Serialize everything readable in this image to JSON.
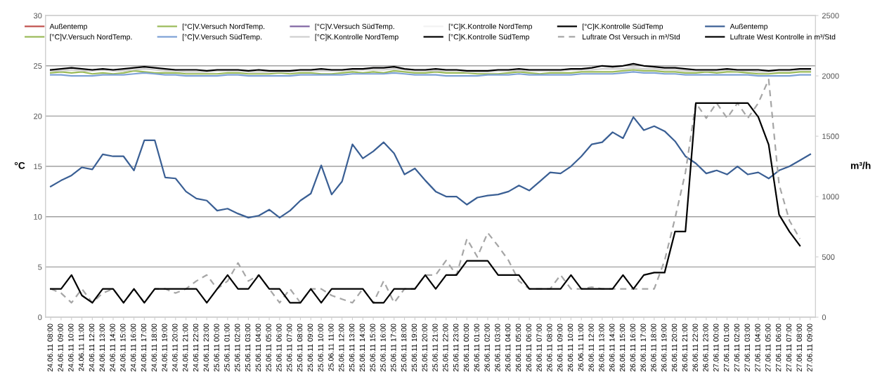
{
  "chart_data": {
    "type": "line",
    "ylabel": "°C",
    "y2label": "m³/h",
    "ylim": [
      0,
      30
    ],
    "yticks": [
      0,
      5,
      10,
      15,
      20,
      25,
      30
    ],
    "y2lim": [
      0,
      2500
    ],
    "y2ticks": [
      0,
      500,
      1000,
      1500,
      2000,
      2500
    ],
    "grid": "y",
    "legend": "top",
    "categories": [
      "24.06.11 08:00",
      "24.06.11 09:00",
      "24.06.11 10:00",
      "24.06.11 11:00",
      "24.06.11 12:00",
      "24.06.11 13:00",
      "24.06.11 14:00",
      "24.06.11 15:00",
      "24.06.11 16:00",
      "24.06.11 17:00",
      "24.06.11 18:00",
      "24.06.11 19:00",
      "24.06.11 20:00",
      "24.06.11 21:00",
      "24.06.11 22:00",
      "24.06.11 23:00",
      "25.06.11 00:00",
      "25.06.11 01:00",
      "25.06.11 02:00",
      "25.06.11 03:00",
      "25.06.11 04:00",
      "25.06.11 05:00",
      "25.06.11 06:00",
      "25.06.11 07:00",
      "25.06.11 08:00",
      "25.06.11 09:00",
      "25.06.11 10:00",
      "25.06.11 11:00",
      "25.06.11 12:00",
      "25.06.11 13:00",
      "25.06.11 14:00",
      "25.06.11 15:00",
      "25.06.11 16:00",
      "25.06.11 17:00",
      "25.06.11 18:00",
      "25.06.11 19:00",
      "25.06.11 20:00",
      "25.06.11 21:00",
      "25.06.11 22:00",
      "25.06.11 23:00",
      "26.06.11 00:00",
      "26.06.11 01:00",
      "26.06.11 02:00",
      "26.06.11 03:00",
      "26.06.11 04:00",
      "26.06.11 05:00",
      "26.06.11 06:00",
      "26.06.11 07:00",
      "26.06.11 08:00",
      "26.06.11 09:00",
      "26.06.11 10:00",
      "26.06.11 11:00",
      "26.06.11 12:00",
      "26.06.11 13:00",
      "26.06.11 14:00",
      "26.06.11 15:00",
      "26.06.11 16:00",
      "26.06.11 17:00",
      "26.06.11 18:00",
      "26.06.11 19:00",
      "26.06.11 20:00",
      "26.06.11 21:00",
      "26.06.11 22:00",
      "26.06.11 23:00",
      "27.06.11 00:00",
      "27.06.11 01:00",
      "27.06.11 02:00",
      "27.06.11 03:00",
      "27.06.11 04:00",
      "27.06.11 05:00",
      "27.06.11 06:00",
      "27.06.11 07:00",
      "27.06.11 08:00",
      "27.06.11 09:00"
    ],
    "series": [
      {
        "name": "Außentemp",
        "color": "#c0504d",
        "values": [
          null,
          null,
          null,
          null,
          null,
          null,
          null,
          null,
          null,
          null,
          null,
          null,
          null,
          null,
          null,
          null,
          null,
          null,
          null,
          null,
          null,
          null,
          null,
          null,
          null,
          null,
          null,
          null,
          null,
          null,
          null,
          null,
          null,
          null,
          null,
          null,
          null,
          null,
          null,
          null,
          null,
          null,
          null,
          null,
          null,
          null,
          null,
          null,
          null,
          null,
          null,
          null,
          null,
          null,
          null,
          null,
          null,
          null,
          null,
          null,
          null,
          null,
          null,
          null,
          null,
          null,
          null,
          null,
          null,
          null,
          null,
          null,
          null,
          null
        ]
      },
      {
        "name": "[°C]V.Versuch NordTemp.",
        "color": "#9bbb59",
        "values": [
          null,
          null,
          null,
          null,
          null,
          null,
          null,
          null,
          null,
          null,
          null,
          null,
          null,
          null,
          null,
          null,
          null,
          null,
          null,
          null,
          null,
          null,
          null,
          null,
          null,
          null,
          null,
          null,
          null,
          null,
          null,
          null,
          null,
          null,
          null,
          null,
          null,
          null,
          null,
          null,
          null,
          null,
          null,
          null,
          null,
          null,
          null,
          null,
          null,
          null,
          null,
          null,
          null,
          null,
          null,
          null,
          null,
          null,
          null,
          null,
          null,
          null,
          null,
          null,
          null,
          null,
          null,
          null,
          null,
          null,
          null,
          null,
          null,
          null
        ]
      },
      {
        "name": "[°C]V.Versuch SüdTemp.",
        "color": "#8064a2",
        "values": [
          null,
          null,
          null,
          null,
          null,
          null,
          null,
          null,
          null,
          null,
          null,
          null,
          null,
          null,
          null,
          null,
          null,
          null,
          null,
          null,
          null,
          null,
          null,
          null,
          null,
          null,
          null,
          null,
          null,
          null,
          null,
          null,
          null,
          null,
          null,
          null,
          null,
          null,
          null,
          null,
          null,
          null,
          null,
          null,
          null,
          null,
          null,
          null,
          null,
          null,
          null,
          null,
          null,
          null,
          null,
          null,
          null,
          null,
          null,
          null,
          null,
          null,
          null,
          null,
          null,
          null,
          null,
          null,
          null,
          null,
          null,
          null,
          null,
          null
        ]
      },
      {
        "name": "[°C]K.Kontrolle NordTemp",
        "color": "#f2f2f2",
        "values": [
          null,
          null,
          null,
          null,
          null,
          null,
          null,
          null,
          null,
          null,
          null,
          null,
          null,
          null,
          null,
          null,
          null,
          null,
          null,
          null,
          null,
          null,
          null,
          null,
          null,
          null,
          null,
          null,
          null,
          null,
          null,
          null,
          null,
          null,
          null,
          null,
          null,
          null,
          null,
          null,
          null,
          null,
          null,
          null,
          null,
          null,
          null,
          null,
          null,
          null,
          null,
          null,
          null,
          null,
          null,
          null,
          null,
          null,
          null,
          null,
          null,
          null,
          null,
          null,
          null,
          null,
          null,
          null,
          null,
          null,
          null,
          null,
          null,
          null
        ]
      },
      {
        "name": "[°C]K.Kontrolle SüdTemp",
        "color": "#000000",
        "values": [
          null,
          null,
          null,
          null,
          null,
          null,
          null,
          null,
          null,
          null,
          null,
          null,
          null,
          null,
          null,
          null,
          null,
          null,
          null,
          null,
          null,
          null,
          null,
          null,
          null,
          null,
          null,
          null,
          null,
          null,
          null,
          null,
          null,
          null,
          null,
          null,
          null,
          null,
          null,
          null,
          null,
          null,
          null,
          null,
          null,
          null,
          null,
          null,
          null,
          null,
          null,
          null,
          null,
          null,
          null,
          null,
          null,
          null,
          null,
          null,
          null,
          null,
          null,
          null,
          null,
          null,
          null,
          null,
          null,
          null,
          null,
          null,
          null,
          null
        ]
      },
      {
        "name": "Außentemp",
        "color": "#3a5f94",
        "values": [
          13.0,
          13.6,
          14.1,
          14.9,
          14.7,
          16.2,
          16.0,
          16.0,
          14.6,
          17.6,
          17.6,
          13.9,
          13.8,
          12.5,
          11.8,
          11.6,
          10.6,
          10.8,
          10.3,
          9.9,
          10.1,
          10.7,
          9.9,
          10.6,
          11.6,
          12.3,
          15.1,
          12.2,
          13.5,
          17.2,
          15.8,
          16.5,
          17.4,
          16.3,
          14.2,
          14.8,
          13.6,
          12.5,
          12.0,
          12.0,
          11.2,
          11.9,
          12.1,
          12.2,
          12.5,
          13.1,
          12.6,
          13.5,
          14.4,
          14.3,
          15.0,
          16.0,
          17.2,
          17.4,
          18.4,
          17.8,
          19.9,
          18.6,
          19.0,
          18.5,
          17.5,
          16.0,
          15.3,
          14.3,
          14.6,
          14.2,
          15.0,
          14.2,
          14.4,
          13.8,
          14.6,
          15.0,
          15.6,
          16.2
        ]
      },
      {
        "name": "[°C]V.Versuch NordTemp.",
        "color": "#9bbb59",
        "values": [
          24.3,
          24.4,
          24.3,
          24.4,
          24.2,
          24.3,
          24.2,
          24.3,
          24.5,
          24.4,
          24.3,
          24.3,
          24.3,
          24.2,
          24.2,
          24.2,
          24.2,
          24.3,
          24.3,
          24.2,
          24.2,
          24.2,
          24.3,
          24.2,
          24.3,
          24.3,
          24.2,
          24.2,
          24.3,
          24.4,
          24.3,
          24.4,
          24.3,
          24.5,
          24.4,
          24.3,
          24.3,
          24.4,
          24.3,
          24.3,
          24.3,
          24.2,
          24.2,
          24.2,
          24.3,
          24.4,
          24.3,
          24.2,
          24.3,
          24.3,
          24.3,
          24.4,
          24.4,
          24.4,
          24.4,
          24.5,
          24.6,
          24.5,
          24.5,
          24.4,
          24.4,
          24.3,
          24.3,
          24.4,
          24.3,
          24.4,
          24.4,
          24.3,
          24.2,
          24.2,
          24.3,
          24.3,
          24.4,
          24.4
        ]
      },
      {
        "name": "[°C]V.Versuch SüdTemp.",
        "color": "#7ea2d6",
        "values": [
          24.1,
          24.1,
          24.0,
          24.0,
          24.0,
          24.1,
          24.1,
          24.1,
          24.2,
          24.3,
          24.2,
          24.1,
          24.1,
          24.0,
          24.0,
          24.0,
          24.0,
          24.1,
          24.1,
          24.0,
          24.0,
          24.0,
          24.0,
          24.0,
          24.1,
          24.1,
          24.1,
          24.1,
          24.1,
          24.2,
          24.2,
          24.2,
          24.2,
          24.3,
          24.2,
          24.1,
          24.1,
          24.1,
          24.0,
          24.0,
          24.0,
          24.0,
          24.1,
          24.1,
          24.1,
          24.2,
          24.1,
          24.1,
          24.1,
          24.1,
          24.1,
          24.2,
          24.2,
          24.2,
          24.2,
          24.3,
          24.4,
          24.3,
          24.3,
          24.2,
          24.2,
          24.1,
          24.1,
          24.1,
          24.1,
          24.1,
          24.1,
          24.1,
          24.0,
          24.0,
          24.0,
          24.0,
          24.1,
          24.1
        ]
      },
      {
        "name": "[°C]K.Kontrolle NordTemp",
        "color": "#cfcfcf",
        "values": [
          24.5,
          24.5,
          24.6,
          24.5,
          24.5,
          24.6,
          24.5,
          24.5,
          24.6,
          24.7,
          24.6,
          24.5,
          24.5,
          24.4,
          24.4,
          24.4,
          24.5,
          24.5,
          24.5,
          24.4,
          24.4,
          24.4,
          24.4,
          24.4,
          24.5,
          24.5,
          24.5,
          24.5,
          24.5,
          24.6,
          24.6,
          24.6,
          24.6,
          24.7,
          24.6,
          24.5,
          24.5,
          24.5,
          24.5,
          24.5,
          24.4,
          24.4,
          24.4,
          24.5,
          24.5,
          24.5,
          24.5,
          24.5,
          24.5,
          24.5,
          24.6,
          24.6,
          24.6,
          24.7,
          24.7,
          24.7,
          24.8,
          24.7,
          24.7,
          24.6,
          24.6,
          24.5,
          24.5,
          24.5,
          24.5,
          24.6,
          24.5,
          24.5,
          24.4,
          24.4,
          24.5,
          24.5,
          24.6,
          24.6
        ]
      },
      {
        "name": "[°C]K.Kontrolle SüdTemp",
        "color": "#000000",
        "values": [
          24.6,
          24.7,
          24.8,
          24.7,
          24.6,
          24.7,
          24.6,
          24.7,
          24.8,
          24.9,
          24.8,
          24.7,
          24.6,
          24.6,
          24.6,
          24.5,
          24.6,
          24.6,
          24.6,
          24.5,
          24.6,
          24.5,
          24.5,
          24.5,
          24.6,
          24.6,
          24.7,
          24.6,
          24.6,
          24.7,
          24.7,
          24.8,
          24.8,
          24.9,
          24.7,
          24.6,
          24.6,
          24.7,
          24.6,
          24.6,
          24.5,
          24.5,
          24.5,
          24.6,
          24.6,
          24.7,
          24.6,
          24.6,
          24.6,
          24.6,
          24.7,
          24.7,
          24.8,
          25.0,
          24.9,
          25.0,
          25.2,
          25.0,
          24.9,
          24.8,
          24.8,
          24.7,
          24.6,
          24.6,
          24.6,
          24.7,
          24.6,
          24.6,
          24.6,
          24.5,
          24.6,
          24.6,
          24.7,
          24.7
        ]
      },
      {
        "name": "Luftrate Ost Versuch in m³/Std",
        "color": "#a6a6a6",
        "line_style": "dashed",
        "axis": "y2",
        "values": [
          235,
          200,
          120,
          235,
          120,
          200,
          235,
          120,
          235,
          120,
          235,
          235,
          200,
          235,
          300,
          350,
          235,
          300,
          450,
          300,
          350,
          235,
          120,
          235,
          120,
          235,
          235,
          180,
          150,
          120,
          235,
          120,
          300,
          120,
          235,
          235,
          350,
          350,
          470,
          350,
          650,
          500,
          700,
          590,
          470,
          300,
          235,
          235,
          235,
          350,
          235,
          235,
          250,
          235,
          235,
          235,
          235,
          235,
          235,
          470,
          820,
          1200,
          1775,
          1650,
          1775,
          1650,
          1775,
          1650,
          1775,
          1970,
          1100,
          800,
          650,
          null
        ]
      },
      {
        "name": "Luftrate West Kontrolle in m³/Std",
        "color": "#000000",
        "axis": "y2",
        "values": [
          235,
          235,
          350,
          180,
          120,
          235,
          235,
          120,
          235,
          120,
          235,
          235,
          235,
          235,
          235,
          120,
          235,
          350,
          235,
          235,
          350,
          235,
          235,
          120,
          120,
          235,
          120,
          235,
          235,
          235,
          235,
          120,
          120,
          235,
          235,
          235,
          350,
          235,
          350,
          350,
          467,
          467,
          467,
          350,
          350,
          350,
          235,
          235,
          235,
          235,
          350,
          235,
          235,
          235,
          235,
          350,
          235,
          350,
          370,
          370,
          710,
          710,
          1775,
          1775,
          1775,
          1775,
          1775,
          1775,
          1660,
          1430,
          850,
          709,
          593,
          null
        ]
      }
    ]
  }
}
